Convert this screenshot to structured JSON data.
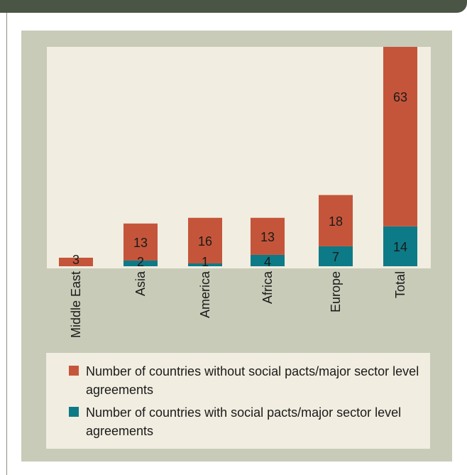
{
  "chart_data": {
    "type": "bar",
    "stacked": true,
    "categories": [
      "Middle East",
      "Asia",
      "America",
      "Africa",
      "Europe",
      "Total"
    ],
    "series": [
      {
        "name": "Number of countries with social pacts/major sector level agreements",
        "values": [
          0,
          2,
          1,
          4,
          7,
          14
        ],
        "color": "#0d7a87"
      },
      {
        "name": "Number of countries without social pacts/major sector level agreements",
        "values": [
          3,
          13,
          16,
          13,
          18,
          63
        ],
        "color": "#c5553a"
      }
    ],
    "data_labels": {
      "with": [
        "",
        "2",
        "1",
        "4",
        "7",
        "14"
      ],
      "without": [
        "3",
        "13",
        "16",
        "13",
        "18",
        "63"
      ]
    },
    "ylim": [
      0,
      77
    ],
    "legend_position": "bottom",
    "legend_order": [
      "without",
      "with"
    ],
    "grid": false
  }
}
